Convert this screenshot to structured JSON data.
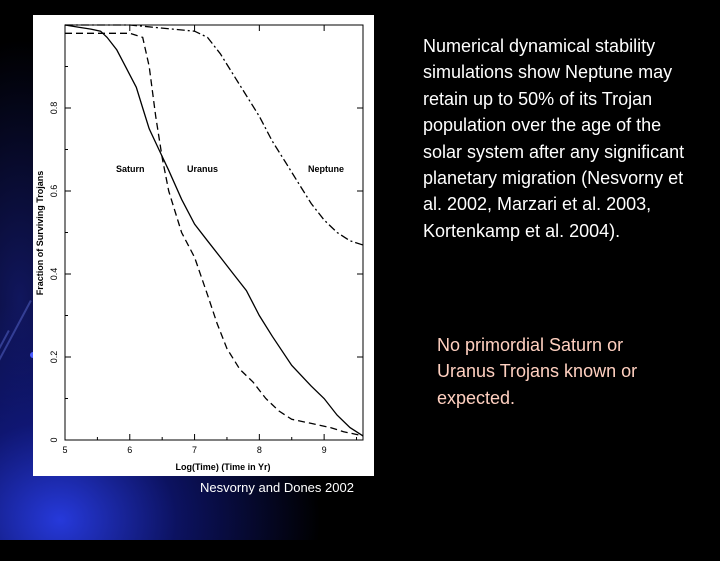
{
  "description": "Numerical dynamical stability simulations show Neptune may retain up to 50% of its Trojan population over the age of the solar system after any significant planetary migration (Nesvorny et al. 2002, Marzari et al. 2003, Kortenkamp et al. 2004).",
  "note": "No primordial Saturn or Uranus Trojans known or expected.",
  "credit": "Nesvorny and Dones 2002",
  "colors": {
    "background": "#000000",
    "accent_glow": "#2a3ce6",
    "note_text": "#ffd0c0"
  },
  "chart_data": {
    "type": "line",
    "title": "",
    "xlabel": "Log(Time) (Time in Yr)",
    "ylabel": "Fraction of Surviving Trojans",
    "xlim": [
      5,
      9.6
    ],
    "ylim": [
      0,
      1
    ],
    "x_ticks": [
      "5",
      "6",
      "7",
      "8",
      "9"
    ],
    "y_ticks": [
      "0",
      "0.2",
      "0.4",
      "0.6",
      "0.8"
    ],
    "grid": false,
    "series": [
      {
        "name": "Saturn",
        "style": "solid",
        "x": [
          5.0,
          5.2,
          5.4,
          5.55,
          5.65,
          5.8,
          5.9,
          6.0,
          6.1,
          6.2,
          6.3,
          6.45,
          6.6,
          6.8,
          7.0,
          7.2,
          7.4,
          7.6,
          7.8,
          8.0,
          8.2,
          8.5,
          8.8,
          9.0,
          9.2,
          9.4,
          9.6
        ],
        "y": [
          1.0,
          0.995,
          0.99,
          0.985,
          0.97,
          0.94,
          0.91,
          0.88,
          0.85,
          0.8,
          0.75,
          0.7,
          0.65,
          0.58,
          0.52,
          0.48,
          0.44,
          0.4,
          0.36,
          0.3,
          0.25,
          0.18,
          0.13,
          0.1,
          0.06,
          0.03,
          0.01
        ]
      },
      {
        "name": "Uranus",
        "style": "dashed",
        "x": [
          5.0,
          5.5,
          6.0,
          6.2,
          6.3,
          6.4,
          6.5,
          6.6,
          6.8,
          7.0,
          7.2,
          7.35,
          7.5,
          7.7,
          7.9,
          8.1,
          8.3,
          8.5,
          8.8,
          9.1,
          9.3,
          9.6
        ],
        "y": [
          0.98,
          0.98,
          0.98,
          0.97,
          0.9,
          0.78,
          0.68,
          0.6,
          0.5,
          0.44,
          0.35,
          0.28,
          0.22,
          0.17,
          0.14,
          0.1,
          0.07,
          0.05,
          0.04,
          0.03,
          0.02,
          0.01
        ]
      },
      {
        "name": "Neptune",
        "style": "dash-dot",
        "x": [
          5.0,
          6.0,
          7.0,
          7.2,
          7.4,
          7.6,
          7.8,
          8.0,
          8.2,
          8.4,
          8.6,
          8.8,
          9.0,
          9.2,
          9.4,
          9.6
        ],
        "y": [
          1.0,
          1.0,
          0.985,
          0.97,
          0.93,
          0.88,
          0.83,
          0.78,
          0.72,
          0.67,
          0.62,
          0.57,
          0.53,
          0.5,
          0.48,
          0.47
        ]
      }
    ],
    "labels": [
      "Saturn",
      "Uranus",
      "Neptune"
    ]
  }
}
